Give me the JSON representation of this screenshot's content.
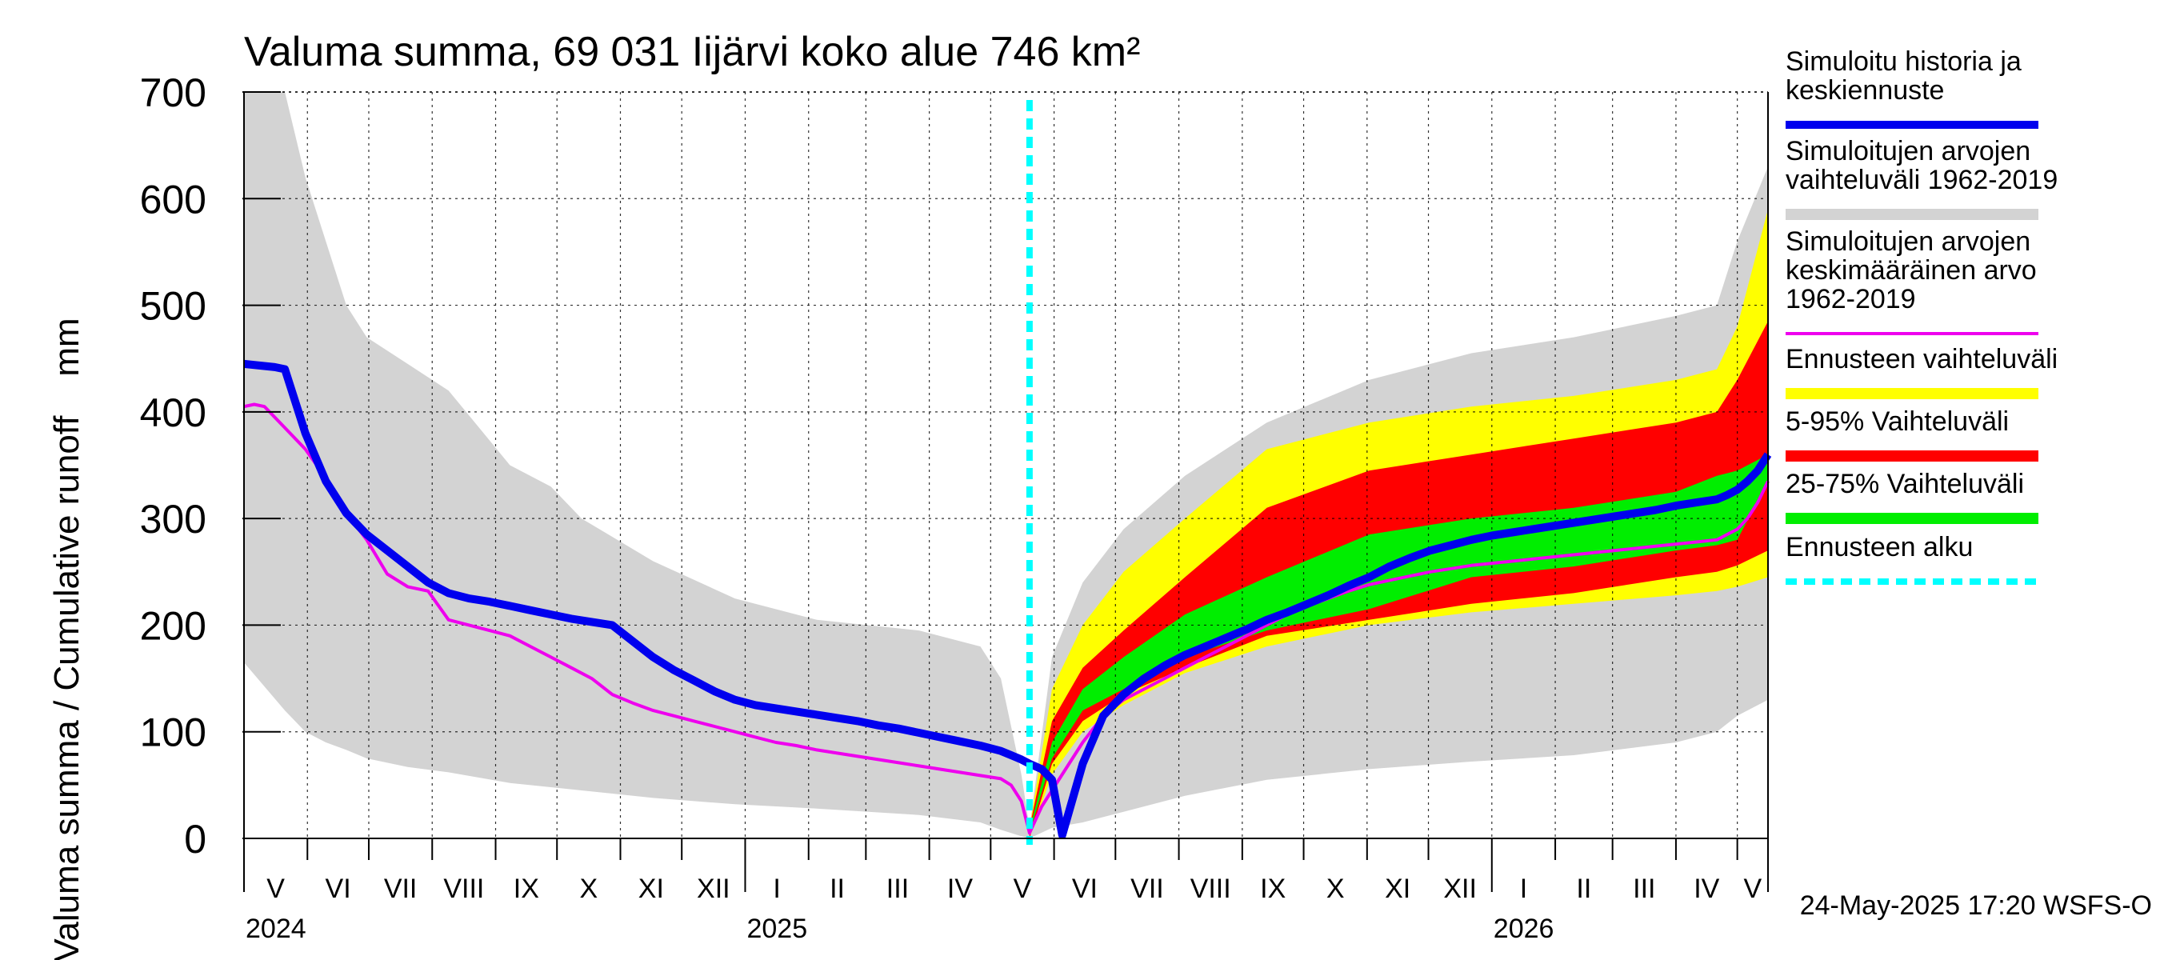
{
  "chart_data": {
    "type": "area",
    "title": "Valuma summa, 69 031 Iijärvi koko alue 746 km²",
    "ylabel": "Valuma summa / Cumulative runoff    mm",
    "ylim": [
      0,
      700
    ],
    "yticks": [
      0,
      100,
      200,
      300,
      400,
      500,
      600,
      700
    ],
    "x_range_days": [
      0,
      745
    ],
    "forecast_start_day": 384,
    "month_labels": [
      {
        "label": "V",
        "start": 0,
        "end": 31
      },
      {
        "label": "VI",
        "start": 31,
        "end": 61
      },
      {
        "label": "VII",
        "start": 61,
        "end": 92
      },
      {
        "label": "VIII",
        "start": 92,
        "end": 123
      },
      {
        "label": "IX",
        "start": 123,
        "end": 153
      },
      {
        "label": "X",
        "start": 153,
        "end": 184
      },
      {
        "label": "XI",
        "start": 184,
        "end": 214
      },
      {
        "label": "XII",
        "start": 214,
        "end": 245
      },
      {
        "label": "I",
        "start": 245,
        "end": 276
      },
      {
        "label": "II",
        "start": 276,
        "end": 304
      },
      {
        "label": "III",
        "start": 304,
        "end": 335
      },
      {
        "label": "IV",
        "start": 335,
        "end": 365
      },
      {
        "label": "V",
        "start": 365,
        "end": 396
      },
      {
        "label": "VI",
        "start": 396,
        "end": 426
      },
      {
        "label": "VII",
        "start": 426,
        "end": 457
      },
      {
        "label": "VIII",
        "start": 457,
        "end": 488
      },
      {
        "label": "IX",
        "start": 488,
        "end": 518
      },
      {
        "label": "X",
        "start": 518,
        "end": 549
      },
      {
        "label": "XI",
        "start": 549,
        "end": 579
      },
      {
        "label": "XII",
        "start": 579,
        "end": 610
      },
      {
        "label": "I",
        "start": 610,
        "end": 641
      },
      {
        "label": "II",
        "start": 641,
        "end": 669
      },
      {
        "label": "III",
        "start": 669,
        "end": 700
      },
      {
        "label": "IV",
        "start": 700,
        "end": 730
      },
      {
        "label": "V",
        "start": 730,
        "end": 745
      }
    ],
    "year_labels": [
      {
        "label": "2024",
        "day": 0
      },
      {
        "label": "2025",
        "day": 245
      },
      {
        "label": "2026",
        "day": 610
      }
    ],
    "hist_range": {
      "x": [
        0,
        20,
        30,
        40,
        50,
        60,
        80,
        100,
        130,
        150,
        165,
        200,
        240,
        280,
        330,
        360,
        370,
        380,
        384,
        395,
        410,
        430,
        460,
        500,
        550,
        600,
        650,
        700,
        720,
        730,
        745
      ],
      "upper": [
        700,
        700,
        620,
        560,
        500,
        470,
        445,
        420,
        350,
        330,
        300,
        260,
        225,
        205,
        195,
        180,
        150,
        60,
        10,
        170,
        240,
        290,
        340,
        390,
        430,
        455,
        470,
        490,
        500,
        560,
        630
      ],
      "lower": [
        165,
        120,
        100,
        90,
        83,
        75,
        67,
        62,
        52,
        48,
        45,
        38,
        32,
        28,
        22,
        15,
        8,
        2,
        0,
        10,
        15,
        25,
        40,
        55,
        65,
        72,
        78,
        90,
        100,
        115,
        130
      ]
    },
    "forecast_range": {
      "x": [
        384,
        395,
        410,
        430,
        460,
        500,
        550,
        600,
        650,
        700,
        720,
        730,
        745
      ],
      "upper": [
        10,
        140,
        200,
        250,
        300,
        365,
        390,
        405,
        415,
        430,
        440,
        480,
        590
      ],
      "lower": [
        0,
        60,
        100,
        125,
        155,
        180,
        200,
        212,
        220,
        228,
        232,
        236,
        245
      ]
    },
    "p5_95": {
      "x": [
        384,
        395,
        410,
        430,
        460,
        500,
        550,
        600,
        650,
        700,
        720,
        730,
        745
      ],
      "upper": [
        10,
        110,
        160,
        195,
        245,
        310,
        345,
        360,
        375,
        390,
        400,
        430,
        485
      ],
      "lower": [
        0,
        70,
        110,
        135,
        160,
        190,
        205,
        220,
        230,
        245,
        250,
        256,
        270
      ]
    },
    "p25_75": {
      "x": [
        384,
        395,
        410,
        430,
        460,
        500,
        550,
        600,
        650,
        700,
        720,
        730,
        745
      ],
      "upper": [
        8,
        90,
        140,
        170,
        210,
        245,
        285,
        300,
        310,
        325,
        340,
        345,
        360
      ],
      "lower": [
        5,
        75,
        120,
        140,
        170,
        195,
        215,
        245,
        255,
        270,
        275,
        280,
        335
      ]
    },
    "series": [
      {
        "name": "Simuloitu historia ja keskiennuste",
        "color": "#0000ee",
        "x": [
          0,
          15,
          20,
          25,
          30,
          40,
          50,
          60,
          70,
          80,
          90,
          100,
          110,
          120,
          130,
          140,
          150,
          160,
          170,
          180,
          190,
          200,
          210,
          220,
          230,
          240,
          250,
          260,
          270,
          280,
          290,
          300,
          310,
          320,
          330,
          340,
          350,
          360,
          370,
          375,
          380,
          384,
          390,
          395,
          400,
          410,
          420,
          430,
          440,
          450,
          460,
          470,
          480,
          490,
          500,
          510,
          520,
          530,
          540,
          550,
          560,
          570,
          580,
          590,
          600,
          610,
          620,
          630,
          640,
          650,
          660,
          670,
          680,
          690,
          700,
          710,
          720,
          725,
          730,
          735,
          740,
          745
        ],
        "y": [
          445,
          442,
          440,
          410,
          380,
          335,
          305,
          285,
          270,
          255,
          240,
          230,
          225,
          222,
          218,
          214,
          210,
          206,
          203,
          200,
          185,
          170,
          158,
          148,
          138,
          130,
          125,
          122,
          119,
          116,
          113,
          110,
          106,
          103,
          99,
          95,
          91,
          87,
          82,
          78,
          74,
          70,
          65,
          55,
          3,
          70,
          115,
          135,
          150,
          162,
          172,
          180,
          188,
          196,
          205,
          212,
          220,
          228,
          237,
          245,
          255,
          263,
          270,
          275,
          280,
          284,
          287,
          290,
          293,
          296,
          299,
          302,
          305,
          308,
          312,
          315,
          318,
          322,
          327,
          335,
          345,
          360
        ]
      },
      {
        "name": "Simuloitujen arvojen keskimääräinen arvo 1962-2019",
        "color": "#ee00ee",
        "x": [
          0,
          5,
          10,
          20,
          30,
          40,
          50,
          60,
          70,
          80,
          90,
          100,
          110,
          120,
          130,
          140,
          150,
          160,
          170,
          180,
          190,
          200,
          210,
          220,
          230,
          240,
          250,
          260,
          270,
          280,
          290,
          300,
          310,
          320,
          330,
          340,
          350,
          360,
          370,
          375,
          380,
          384,
          390,
          400,
          410,
          420,
          430,
          440,
          450,
          460,
          470,
          480,
          490,
          500,
          510,
          520,
          530,
          540,
          550,
          560,
          570,
          580,
          590,
          600,
          610,
          620,
          630,
          640,
          650,
          660,
          670,
          680,
          690,
          700,
          710,
          720,
          725,
          730,
          735,
          740,
          745
        ],
        "y": [
          405,
          407,
          405,
          385,
          365,
          338,
          305,
          280,
          248,
          236,
          232,
          205,
          200,
          195,
          190,
          180,
          170,
          160,
          150,
          135,
          127,
          120,
          115,
          110,
          105,
          100,
          95,
          90,
          87,
          83,
          80,
          77,
          74,
          71,
          68,
          65,
          62,
          59,
          56,
          50,
          35,
          5,
          30,
          60,
          90,
          115,
          130,
          140,
          150,
          160,
          170,
          180,
          190,
          200,
          210,
          218,
          225,
          232,
          238,
          242,
          246,
          250,
          253,
          256,
          258,
          260,
          262,
          264,
          266,
          268,
          270,
          272,
          274,
          276,
          278,
          280,
          285,
          290,
          300,
          315,
          335
        ]
      }
    ],
    "legend": [
      {
        "label_lines": [
          "Simuloitu historia ja",
          "keskiennuste"
        ],
        "color": "#0000ee",
        "style": "line"
      },
      {
        "label_lines": [
          "Simuloitujen arvojen",
          "vaihteluväli 1962-2019"
        ],
        "color": "#d3d3d3",
        "style": "band"
      },
      {
        "label_lines": [
          "Simuloitujen arvojen",
          "keskimääräinen arvo",
          "   1962-2019"
        ],
        "color": "#ee00ee",
        "style": "thin"
      },
      {
        "label_lines": [
          "Ennusteen vaihteluväli"
        ],
        "color": "#ffff00",
        "style": "band"
      },
      {
        "label_lines": [
          "5-95% Vaihteluväli"
        ],
        "color": "#ff0000",
        "style": "band"
      },
      {
        "label_lines": [
          "25-75% Vaihteluväli"
        ],
        "color": "#00ee00",
        "style": "band"
      },
      {
        "label_lines": [
          "Ennusteen alku"
        ],
        "color": "#00ffff",
        "style": "dotted"
      }
    ],
    "footer": "24-May-2025 17:20 WSFS-O"
  }
}
